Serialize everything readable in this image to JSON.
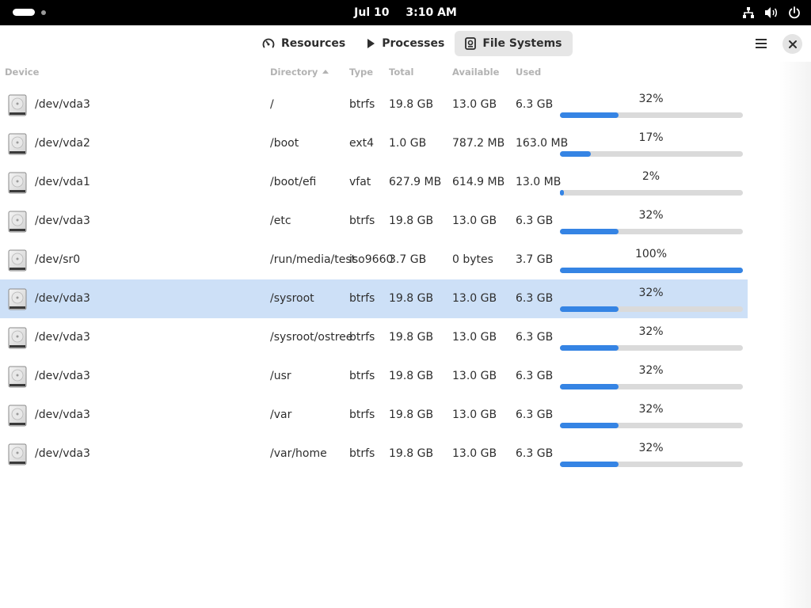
{
  "topbar": {
    "date": "Jul 10",
    "time": "3:10 AM",
    "tray_icons": [
      "network-icon",
      "volume-icon",
      "power-icon"
    ]
  },
  "header": {
    "tabs": [
      {
        "label": "Resources",
        "icon": "gauge-icon"
      },
      {
        "label": "Processes",
        "icon": "play-icon"
      },
      {
        "label": "File Systems",
        "icon": "disk-icon",
        "active": true
      }
    ]
  },
  "table": {
    "columns": [
      "Device",
      "Directory",
      "Type",
      "Total",
      "Available",
      "Used"
    ],
    "sort_column": "Directory",
    "sort_direction": "ascending",
    "rows": [
      {
        "device": "/dev/vda3",
        "directory": "/",
        "type": "btrfs",
        "total": "19.8 GB",
        "available": "13.0 GB",
        "used": "6.3 GB",
        "percent": "32%",
        "fraction": 0.32
      },
      {
        "device": "/dev/vda2",
        "directory": "/boot",
        "type": "ext4",
        "total": "1.0 GB",
        "available": "787.2 MB",
        "used": "163.0 MB",
        "percent": "17%",
        "fraction": 0.17
      },
      {
        "device": "/dev/vda1",
        "directory": "/boot/efi",
        "type": "vfat",
        "total": "627.9 MB",
        "available": "614.9 MB",
        "used": "13.0 MB",
        "percent": "2%",
        "fraction": 0.02
      },
      {
        "device": "/dev/vda3",
        "directory": "/etc",
        "type": "btrfs",
        "total": "19.8 GB",
        "available": "13.0 GB",
        "used": "6.3 GB",
        "percent": "32%",
        "fraction": 0.32
      },
      {
        "device": "/dev/sr0",
        "directory": "/run/media/test",
        "type": "iso9660",
        "total": "3.7 GB",
        "available": "0 bytes",
        "used": "3.7 GB",
        "percent": "100%",
        "fraction": 1.0
      },
      {
        "device": "/dev/vda3",
        "directory": "/sysroot",
        "type": "btrfs",
        "total": "19.8 GB",
        "available": "13.0 GB",
        "used": "6.3 GB",
        "percent": "32%",
        "fraction": 0.32,
        "selected": true
      },
      {
        "device": "/dev/vda3",
        "directory": "/sysroot/ostree",
        "type": "btrfs",
        "total": "19.8 GB",
        "available": "13.0 GB",
        "used": "6.3 GB",
        "percent": "32%",
        "fraction": 0.32
      },
      {
        "device": "/dev/vda3",
        "directory": "/usr",
        "type": "btrfs",
        "total": "19.8 GB",
        "available": "13.0 GB",
        "used": "6.3 GB",
        "percent": "32%",
        "fraction": 0.32
      },
      {
        "device": "/dev/vda3",
        "directory": "/var",
        "type": "btrfs",
        "total": "19.8 GB",
        "available": "13.0 GB",
        "used": "6.3 GB",
        "percent": "32%",
        "fraction": 0.32
      },
      {
        "device": "/dev/vda3",
        "directory": "/var/home",
        "type": "btrfs",
        "total": "19.8 GB",
        "available": "13.0 GB",
        "used": "6.3 GB",
        "percent": "32%",
        "fraction": 0.32
      }
    ]
  },
  "colors": {
    "accent": "#3584e4",
    "selected_row": "#cde0f7",
    "bar_track": "#dadada"
  }
}
